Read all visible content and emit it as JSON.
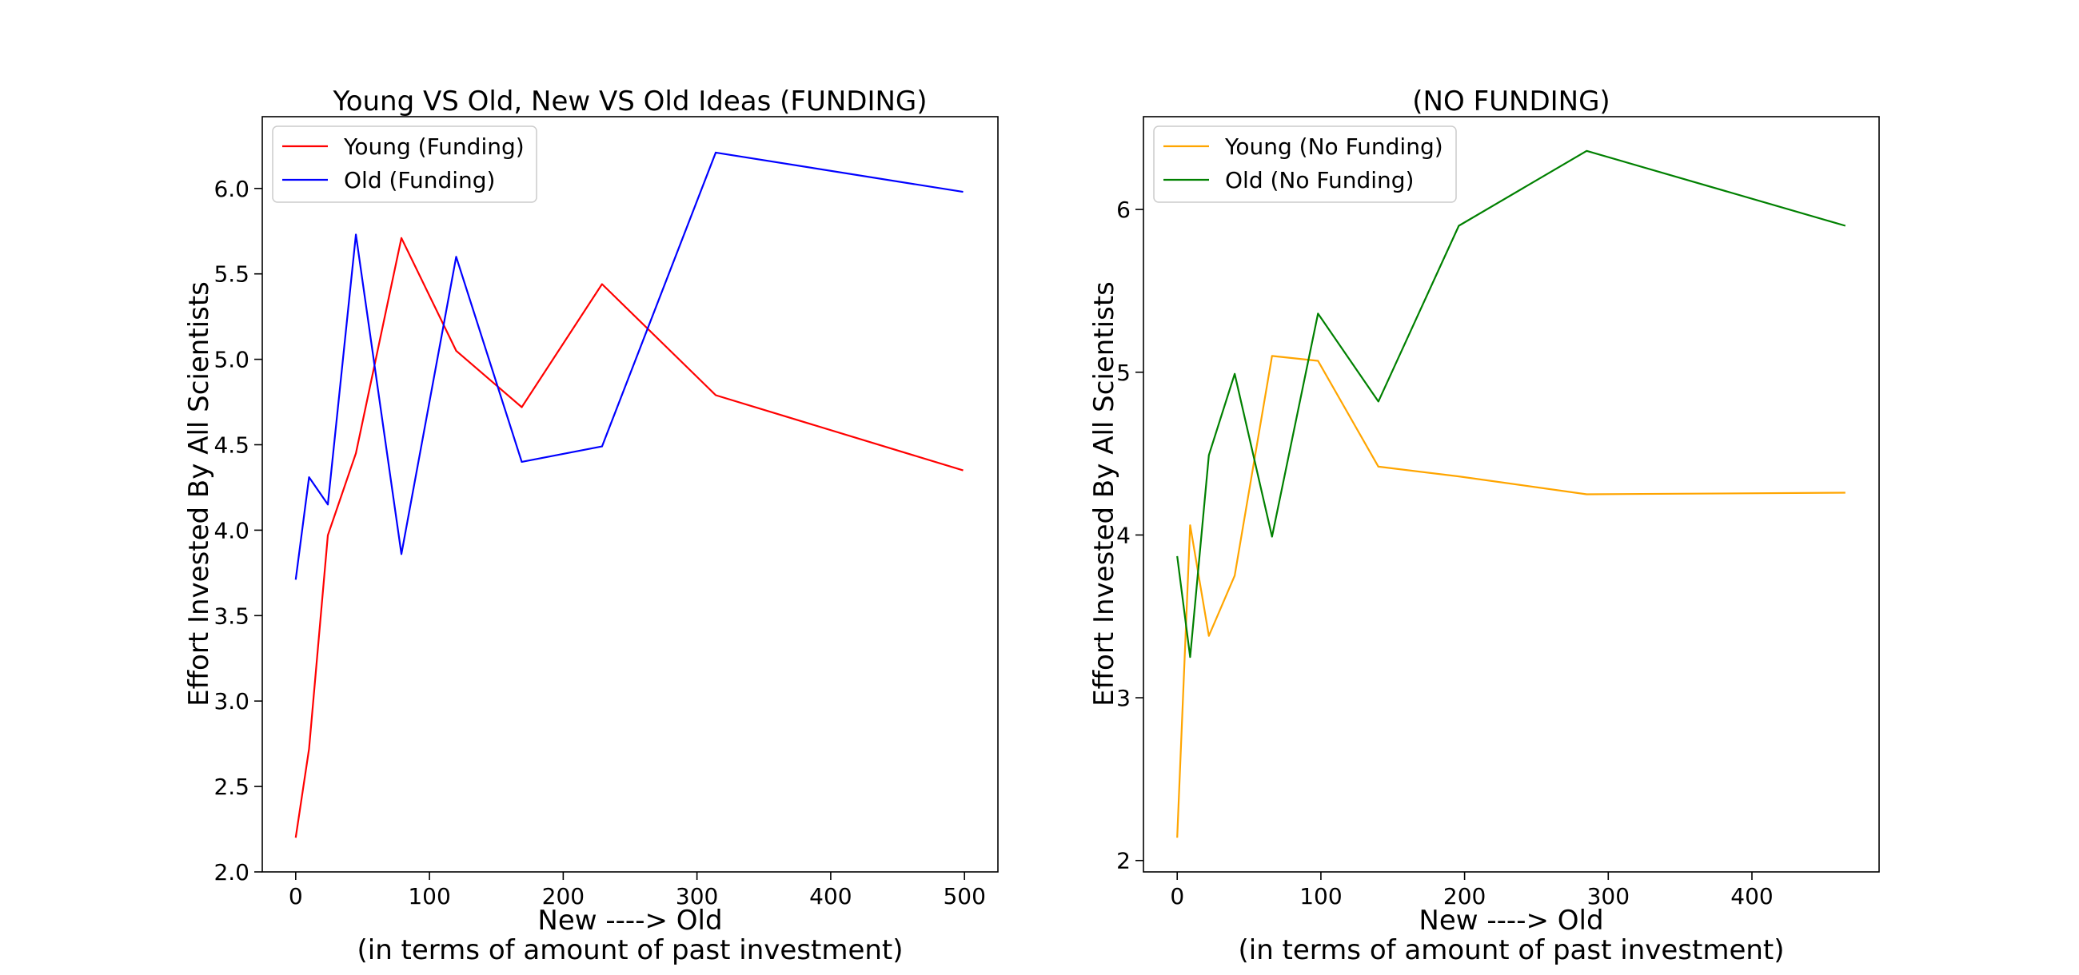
{
  "chart_data": [
    {
      "type": "line",
      "title": "Young VS Old, New VS Old Ideas (FUNDING)",
      "xlabel_line1": "New ----> Old",
      "xlabel_line2": "(in terms of amount of past investment)",
      "ylabel": "Effort Invested By All Scientists",
      "xlim": [
        -25,
        525
      ],
      "ylim": [
        2.0,
        6.42
      ],
      "xticks": [
        0,
        100,
        200,
        300,
        400,
        500
      ],
      "xtick_labels": [
        "0",
        "100",
        "200",
        "300",
        "400",
        "500"
      ],
      "yticks": [
        2.0,
        2.5,
        3.0,
        3.5,
        4.0,
        4.5,
        5.0,
        5.5,
        6.0
      ],
      "ytick_labels": [
        "2.0",
        "2.5",
        "3.0",
        "3.5",
        "4.0",
        "4.5",
        "5.0",
        "5.5",
        "6.0"
      ],
      "legend_position": "top-left",
      "grid": false,
      "series": [
        {
          "name": "Young (Funding)",
          "color": "#ff0000",
          "x": [
            0,
            10,
            24,
            45,
            79,
            120,
            169,
            229,
            314,
            499
          ],
          "y": [
            2.2,
            2.72,
            3.97,
            4.45,
            5.71,
            5.05,
            4.72,
            5.44,
            4.79,
            4.35
          ]
        },
        {
          "name": "Old (Funding)",
          "color": "#0000ff",
          "x": [
            0,
            10,
            24,
            45,
            79,
            120,
            169,
            229,
            314,
            499
          ],
          "y": [
            3.71,
            4.31,
            4.15,
            5.73,
            3.86,
            5.6,
            4.4,
            4.49,
            6.21,
            5.98
          ]
        }
      ]
    },
    {
      "type": "line",
      "title": "(NO FUNDING)",
      "xlabel_line1": "New ----> Old",
      "xlabel_line2": "(in terms of amount of past investment)",
      "ylabel": "Effort Invested By All Scientists",
      "xlim": [
        -23.5,
        488.5
      ],
      "ylim": [
        1.93,
        6.57
      ],
      "xticks": [
        0,
        100,
        200,
        300,
        400
      ],
      "xtick_labels": [
        "0",
        "100",
        "200",
        "300",
        "400"
      ],
      "yticks": [
        2,
        3,
        4,
        5,
        6
      ],
      "ytick_labels": [
        "2",
        "3",
        "4",
        "5",
        "6"
      ],
      "legend_position": "top-left",
      "grid": false,
      "series": [
        {
          "name": "Young (No Funding)",
          "color": "#ffa500",
          "x": [
            0,
            9,
            22,
            40,
            66,
            98,
            140,
            196,
            285,
            465
          ],
          "y": [
            2.14,
            4.06,
            3.38,
            3.75,
            5.1,
            5.07,
            4.42,
            4.36,
            4.25,
            4.26
          ]
        },
        {
          "name": "Old (No Funding)",
          "color": "#008000",
          "x": [
            0,
            9,
            22,
            40,
            66,
            98,
            140,
            196,
            285,
            465
          ],
          "y": [
            3.87,
            3.25,
            4.49,
            4.99,
            3.99,
            5.36,
            4.82,
            5.9,
            6.36,
            5.9
          ]
        }
      ]
    }
  ]
}
